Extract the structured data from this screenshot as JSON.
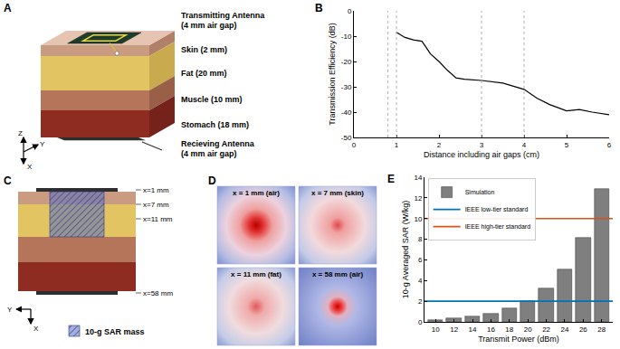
{
  "diagram_a": {
    "panel": "A",
    "transmitting_antenna": [
      "Transmitting Antenna",
      "(4 mm air gap)"
    ],
    "layers": [
      "Skin (2 mm)",
      "Fat (20 mm)",
      "Muscle (10 mm)",
      "Stomach (18 mm)"
    ],
    "receiving_antenna": [
      "Recieving Antenna",
      "(4 mm air gap)"
    ],
    "axes": [
      "Z",
      "Y",
      "X"
    ]
  },
  "diagram_c": {
    "panel": "C",
    "positions": [
      "x=1 mm",
      "x=7 mm",
      "x=11 mm",
      "x=58 mm"
    ],
    "sar_label": "10-g SAR mass",
    "axes": [
      "Y",
      "X"
    ]
  },
  "images_d": {
    "panel": "D",
    "labels": [
      "x = 1 mm (air)",
      "x = 7 mm (skin)",
      "x = 11 mm (fat)",
      "x = 58 mm (air)"
    ]
  },
  "chart_data": [
    {
      "panel": "B",
      "type": "line",
      "x_label": "Distance including air gaps (cm)",
      "y_label": "Transmission Efficiency (dB)",
      "x": [
        1.0,
        1.2,
        1.4,
        1.6,
        1.8,
        2.0,
        2.2,
        2.4,
        2.6,
        3.0,
        3.5,
        3.8,
        4.0,
        4.3,
        4.6,
        5.0,
        5.3,
        5.6,
        6.0
      ],
      "values": [
        -8.5,
        -10.5,
        -11.5,
        -12,
        -17,
        -20,
        -23.5,
        -26.5,
        -27,
        -27.5,
        -28.5,
        -30,
        -31,
        -34.5,
        -37,
        -39.5,
        -39,
        -40,
        -41
      ],
      "color": "#000000",
      "xlim": [
        0,
        6
      ],
      "xticks": [
        0,
        1,
        2,
        3,
        4,
        5,
        6
      ],
      "ylim": [
        -50,
        0
      ],
      "yticks": [
        -50,
        -40,
        -30,
        -20,
        -10,
        0
      ],
      "reference_lines": {
        "x": [
          0.8,
          1.0,
          3.0,
          4.0
        ],
        "color": "#b0b0b0",
        "line_style": "dotted"
      },
      "grid": false
    },
    {
      "panel": "E",
      "type": "bar",
      "x_label": "Transmit Power (dBm)",
      "y_label": "10-g Averaged SAR (W/kg)",
      "x": [
        10,
        12,
        14,
        16,
        18,
        20,
        22,
        24,
        26,
        28
      ],
      "series": [
        {
          "name": "Simulation",
          "type": "bar",
          "color": "#7f7f7f",
          "values": [
            0.2,
            0.32,
            0.5,
            0.8,
            1.3,
            2.05,
            3.25,
            5.1,
            8.15,
            12.9
          ]
        },
        {
          "name": "IEEE low-tier standard",
          "type": "hline",
          "color": "#0072bd",
          "value": 2
        },
        {
          "name": "IEEE high-tier standard",
          "type": "hline",
          "color": "#d95319",
          "value": 10
        }
      ],
      "xlim": [
        8.8,
        29.2
      ],
      "xticks": [
        10,
        12,
        14,
        16,
        18,
        20,
        22,
        24,
        26,
        28
      ],
      "ylim": [
        0,
        14
      ],
      "yticks": [
        0,
        2,
        4,
        6,
        8,
        10,
        12,
        14
      ],
      "legend": "upper left",
      "grid": false
    }
  ]
}
